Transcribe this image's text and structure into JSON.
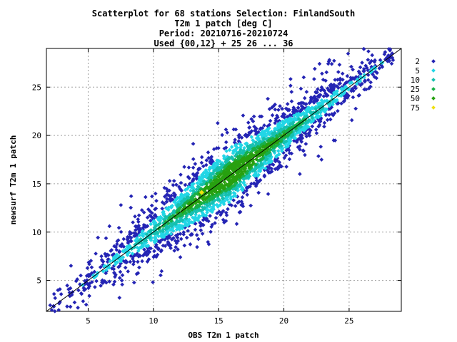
{
  "chart_data": {
    "type": "scatter",
    "title_lines": [
      "Scatterplot for   68 stations Selection: FinlandSouth",
      "T2m 1 patch [deg C]",
      "Period: 20210716-20210724",
      "Used {00,12} + 25 26 ... 36"
    ],
    "xlabel": "OBS T2m 1 patch",
    "ylabel": "newsurf T2m 1 patch",
    "xlim": [
      1.8,
      29
    ],
    "ylim": [
      1.8,
      29
    ],
    "xticks": [
      5,
      10,
      15,
      20,
      25
    ],
    "yticks": [
      5,
      10,
      15,
      20,
      25
    ],
    "grid": true,
    "diagonal": true,
    "legend_position": "right",
    "density_classes": [
      {
        "label": "2",
        "color": "#2424b4"
      },
      {
        "label": "5",
        "color": "#22d6e6"
      },
      {
        "label": "10",
        "color": "#16c0b0"
      },
      {
        "label": "25",
        "color": "#18b048"
      },
      {
        "label": "50",
        "color": "#28a010"
      },
      {
        "label": "75",
        "color": "#f0e010"
      }
    ],
    "distribution": {
      "trend": "y = x",
      "x_range": [
        2,
        28.4
      ],
      "mode_point": [
        13.7,
        14.1
      ],
      "note": "dense cloud along the diagonal, spread widest between x=5 and x=24"
    }
  }
}
